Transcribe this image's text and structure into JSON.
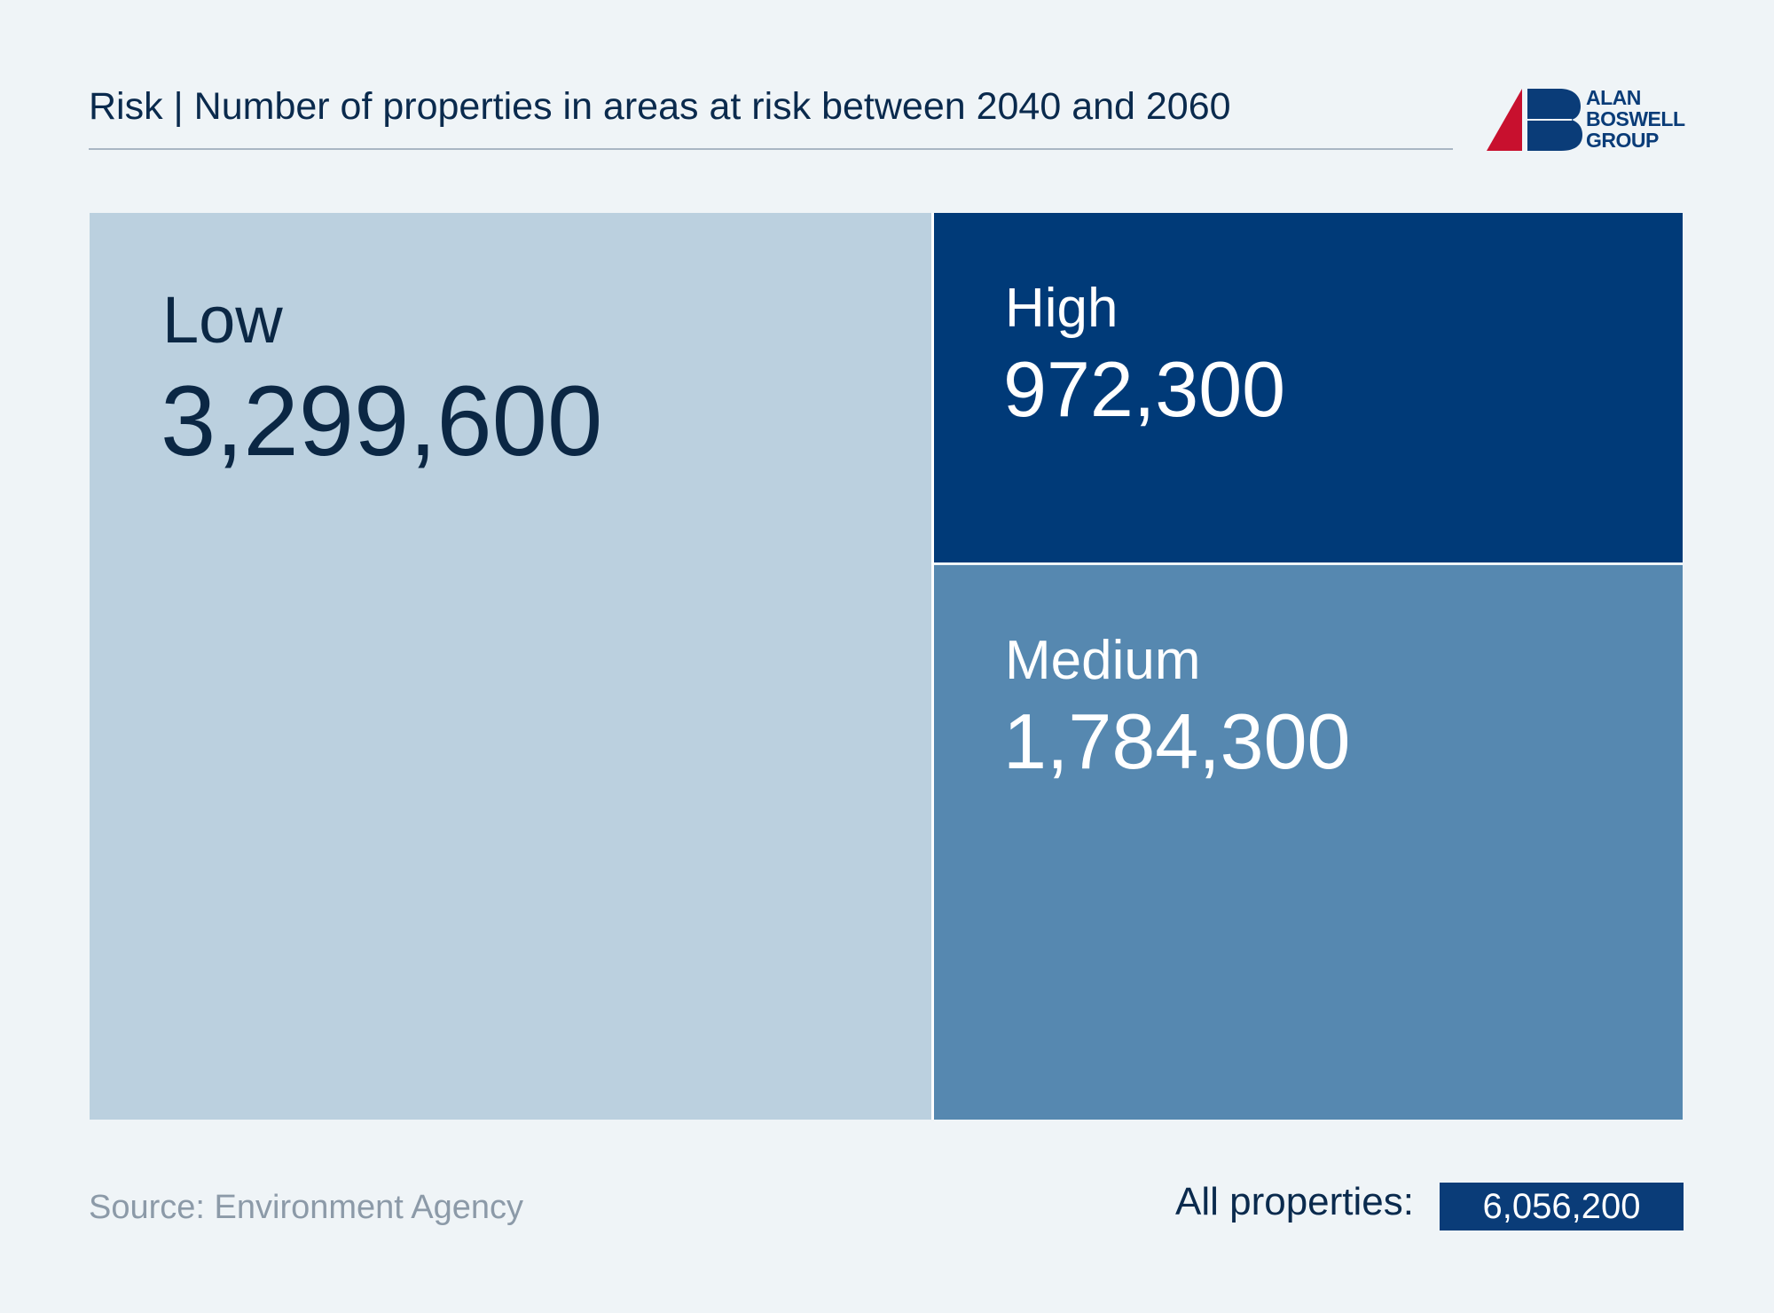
{
  "header": {
    "title": "Risk | Number of properties in areas at risk between 2040 and 2060",
    "logo_lines": [
      "ALAN",
      "BOSWELL",
      "GROUP"
    ]
  },
  "chart_data": {
    "type": "treemap",
    "title": "Risk | Number of properties in areas at risk between 2040 and 2060",
    "items": [
      {
        "label": "Low",
        "value": 3299600,
        "display": "3,299,600",
        "color": "#bbd0df",
        "text_color": "#0b2744"
      },
      {
        "label": "High",
        "value": 972300,
        "display": "972,300",
        "color": "#003a78",
        "text_color": "#ffffff"
      },
      {
        "label": "Medium",
        "value": 1784300,
        "display": "1,784,300",
        "color": "#5688b0",
        "text_color": "#ffffff"
      }
    ]
  },
  "footer": {
    "source": "Source: Environment Agency",
    "total_label": "All properties:",
    "total_value": "6,056,200"
  },
  "colors": {
    "background": "#eff4f7",
    "brand_red": "#c8102e",
    "brand_blue": "#0a3c78"
  }
}
